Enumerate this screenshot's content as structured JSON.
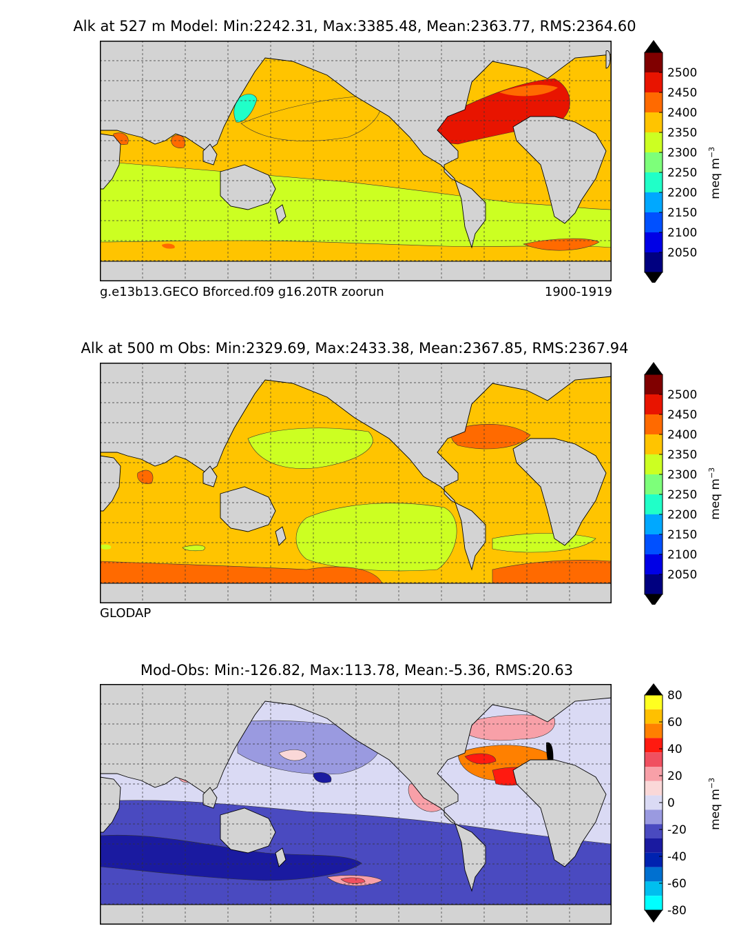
{
  "panels": [
    {
      "title": "Alk at 527 m Model: Min:2242.31, Max:3385.48, Mean:2363.77, RMS:2364.60",
      "left_note": "g.e13b13.GECO Bforced.f09 g16.20TR zoorun",
      "right_note": "1900-1919"
    },
    {
      "title": "Alk at 500 m Obs: Min:2329.69, Max:2433.38, Mean:2367.85, RMS:2367.94",
      "left_note": "GLODAP",
      "right_note": ""
    },
    {
      "title": "Mod-Obs: Min:-126.82, Max:113.78, Mean:-5.36, RMS:20.63",
      "left_note": "",
      "right_note": ""
    }
  ],
  "colorbars": {
    "alk": {
      "ticks": [
        "2050",
        "2100",
        "2150",
        "2200",
        "2250",
        "2300",
        "2350",
        "2400",
        "2450",
        "2500"
      ],
      "unit": "meq m",
      "unit_sup": "−3",
      "colors": [
        "#000080",
        "#0000e6",
        "#0050ff",
        "#00a8ff",
        "#20ffc8",
        "#7dff7a",
        "#ccff22",
        "#ffc400",
        "#ff6a00",
        "#e81400",
        "#800000"
      ]
    },
    "diff": {
      "ticks": [
        "-80",
        "-60",
        "-40",
        "-20",
        "0",
        "20",
        "40",
        "60",
        "80"
      ],
      "unit": "meq m",
      "unit_sup": "−3",
      "colors": [
        "#00ffff",
        "#00bfef",
        "#0070d0",
        "#0022b0",
        "#1a1aa0",
        "#4a4ac0",
        "#9a9ae0",
        "#dadaf4",
        "#fad8d8",
        "#f8a0a8",
        "#f05060",
        "#ff1a10",
        "#ff8000",
        "#ffc000",
        "#ffff20"
      ]
    }
  },
  "chart_data": [
    {
      "type": "heatmap",
      "title": "Alk at 527 m Model: Min:2242.31, Max:3385.48, Mean:2363.77, RMS:2364.60",
      "variable": "Alkalinity",
      "depth_m": 527,
      "stats": {
        "min": 2242.31,
        "max": 3385.48,
        "mean": 2363.77,
        "rms": 2364.6
      },
      "colorbar_levels": [
        2050,
        2100,
        2150,
        2200,
        2250,
        2300,
        2350,
        2400,
        2450,
        2500
      ],
      "colorbar_unit": "meq m^-3",
      "source": "g.e13b13.GECO Bforced.f09 g16.20TR zoorun",
      "period": "1900-1919"
    },
    {
      "type": "heatmap",
      "title": "Alk at 500 m Obs: Min:2329.69, Max:2433.38, Mean:2367.85, RMS:2367.94",
      "variable": "Alkalinity",
      "depth_m": 500,
      "stats": {
        "min": 2329.69,
        "max": 2433.38,
        "mean": 2367.85,
        "rms": 2367.94
      },
      "colorbar_levels": [
        2050,
        2100,
        2150,
        2200,
        2250,
        2300,
        2350,
        2400,
        2450,
        2500
      ],
      "colorbar_unit": "meq m^-3",
      "source": "GLODAP"
    },
    {
      "type": "heatmap",
      "title": "Mod-Obs: Min:-126.82, Max:113.78, Mean:-5.36, RMS:20.63",
      "variable": "Alkalinity difference",
      "stats": {
        "min": -126.82,
        "max": 113.78,
        "mean": -5.36,
        "rms": 20.63
      },
      "colorbar_levels": [
        -80,
        -60,
        -40,
        -20,
        0,
        20,
        40,
        60,
        80
      ],
      "colorbar_unit": "meq m^-3"
    }
  ]
}
